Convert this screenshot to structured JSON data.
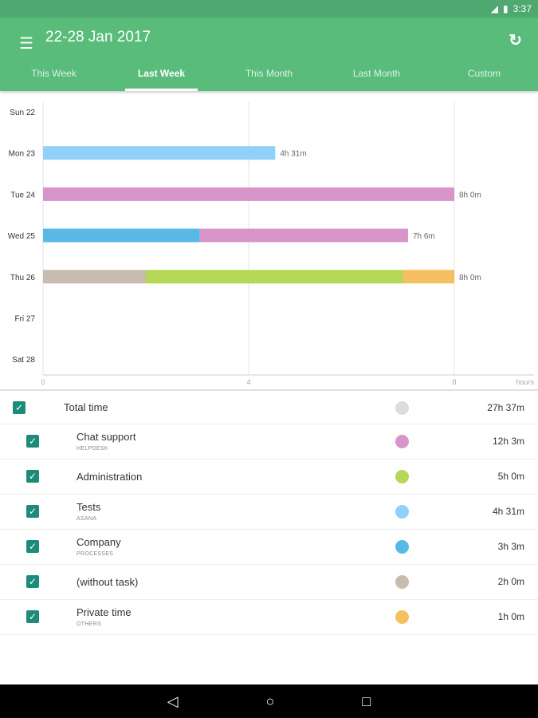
{
  "status": {
    "time": "3:37"
  },
  "header": {
    "title": "22-28 Jan 2017"
  },
  "tabs": [
    "This Week",
    "Last Week",
    "This Month",
    "Last Month",
    "Custom"
  ],
  "active_tab": 1,
  "chart_data": {
    "type": "bar",
    "stacked": true,
    "orientation": "horizontal",
    "categories": [
      "Sun 22",
      "Mon 23",
      "Tue 24",
      "Wed 25",
      "Thu 26",
      "Fri 27",
      "Sat 28"
    ],
    "xlabel": "hours",
    "xlim": [
      0,
      8.7
    ],
    "xticks": [
      0,
      4,
      8
    ],
    "series": [
      {
        "name": "Tests",
        "color": "#8fd1f9",
        "values": [
          0,
          4.517,
          0,
          0,
          0,
          0,
          0
        ]
      },
      {
        "name": "Company",
        "color": "#5ab8e6",
        "values": [
          0,
          0,
          0,
          3.05,
          0,
          0,
          0
        ]
      },
      {
        "name": "Chat support",
        "color": "#d895c9",
        "values": [
          0,
          0,
          8,
          4.05,
          0,
          0,
          0
        ]
      },
      {
        "name": "(without task)",
        "color": "#c8bbb0",
        "values": [
          0,
          0,
          0,
          0,
          2,
          0,
          0
        ]
      },
      {
        "name": "Administration",
        "color": "#b5d857",
        "values": [
          0,
          0,
          0,
          0,
          5,
          0,
          0
        ]
      },
      {
        "name": "Private time",
        "color": "#f6c060",
        "values": [
          0,
          0,
          0,
          0,
          1,
          0,
          0
        ]
      }
    ],
    "totals_labels": [
      "",
      "4h 31m",
      "8h 0m",
      "7h 6m",
      "8h 0m",
      "",
      ""
    ]
  },
  "list": {
    "total": {
      "name": "Total time",
      "value": "27h 37m",
      "color": "#dcdcdc"
    },
    "items": [
      {
        "name": "Chat support",
        "sub": "HELPDESK",
        "value": "12h 3m",
        "color": "#d895c9"
      },
      {
        "name": "Administration",
        "sub": "",
        "value": "5h 0m",
        "color": "#b5d857"
      },
      {
        "name": "Tests",
        "sub": "ASANA",
        "value": "4h 31m",
        "color": "#8fd1f9"
      },
      {
        "name": "Company",
        "sub": "PROCESSES",
        "value": "3h 3m",
        "color": "#5ab8e6"
      },
      {
        "name": "(without task)",
        "sub": "",
        "value": "2h 0m",
        "color": "#c8bbb0"
      },
      {
        "name": "Private time",
        "sub": "OTHERS",
        "value": "1h 0m",
        "color": "#f6c060"
      }
    ]
  }
}
